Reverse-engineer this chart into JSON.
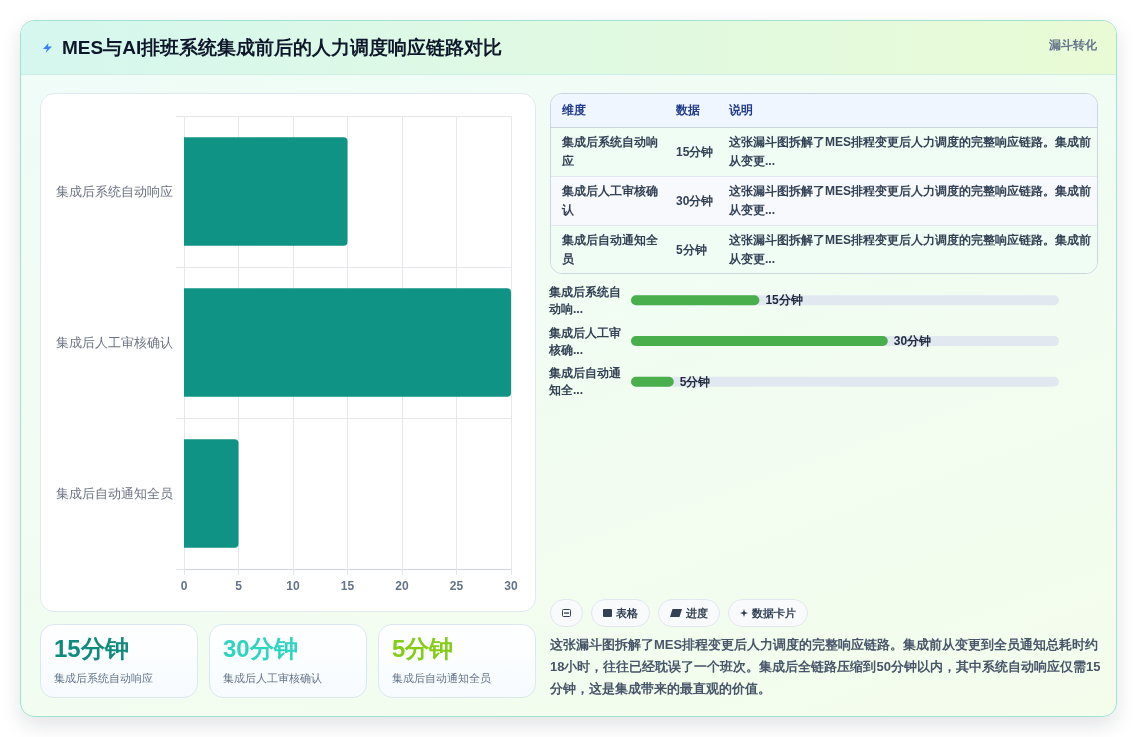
{
  "chart_data": [
    {
      "type": "bar",
      "title": "MES与AI排班系统集成前后的人力调度响应链路对比",
      "annotations": [
        "漏斗转化"
      ],
      "orientation": "horizontal",
      "categories": [
        "集成后系统自动响应",
        "集成后人工审核确认",
        "集成后自动通知全员"
      ],
      "values": [
        15,
        30,
        5
      ],
      "color": "#0e9384",
      "xlim": [
        0,
        30
      ],
      "xticks": [
        0,
        5,
        10,
        15,
        20,
        25,
        30
      ],
      "grid": true
    },
    {
      "type": "other",
      "categories": [
        "集成后系统自动响应",
        "集成后人工审核确认",
        "集成后自动通知全员"
      ],
      "annotations": [
        "维度",
        "数据",
        "说明",
        "15分钟",
        "这张漏斗图拆解了MES排程变更后人力调度的完整响应链路。集成前从变更...",
        "30分钟",
        "这张漏斗图拆解了MES排程变更后人力调度的完整响应链路。集成前从变更...",
        "5分钟",
        "这张漏斗图拆解了MES排程变更后人力调度的完整响应链路。集成前从变更..."
      ]
    },
    {
      "type": "bar",
      "orientation": "horizontal",
      "categories": [
        "集成后系统自动响...",
        "集成后人工审核确...",
        "集成后自动通知全..."
      ],
      "values": [
        15,
        30,
        5
      ],
      "value_labels": [
        "15分钟",
        "30分钟",
        "5分钟"
      ],
      "color": "#49af4d"
    },
    {
      "type": "other",
      "categories": [
        "集成后系统自动响应",
        "集成后人工审核确认",
        "集成后自动通知全员"
      ],
      "annotations": [
        "15分钟",
        "30分钟",
        "5分钟"
      ]
    },
    {
      "type": "other",
      "annotations": [
        "表格",
        "进度",
        "数据卡片",
        "这张漏斗图拆解了MES排程变更后人力调度的完整响应链路。集成前从变更到全员通知总耗时约18小时，往往已经耽误了一个班次。集成后全链路压缩到50分钟以内，其中系统自动响应仅需15分钟，这是集成带来的最直观的价值。"
      ]
    }
  ]
}
